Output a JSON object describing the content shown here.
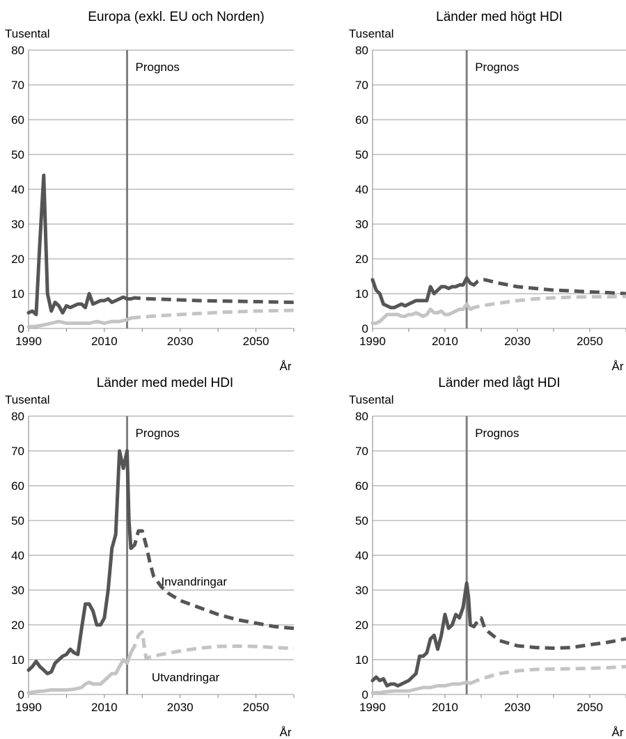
{
  "colors": {
    "invandringar": "#555555",
    "utvandringar": "#c4c4c4",
    "grid": "#9a9a9a",
    "forecast_line": "#808080",
    "axis": "#808080"
  },
  "chart_data": [
    {
      "type": "line",
      "title": "Europa (exkl. EU och Norden)",
      "ylabel": "Tusental",
      "xlabel": "År",
      "xlim": [
        1990,
        2060
      ],
      "ylim": [
        0,
        80
      ],
      "yticks": [
        0,
        10,
        20,
        30,
        40,
        50,
        60,
        70,
        80
      ],
      "xticks": [
        1990,
        2010,
        2030,
        2050
      ],
      "forecast_start": 2016,
      "forecast_label": "Prognos",
      "grid": "horizontal",
      "series": [
        {
          "key": "invandringar",
          "x": [
            1990,
            1991,
            1992,
            1993,
            1994,
            1995,
            1996,
            1997,
            1998,
            1999,
            2000,
            2001,
            2002,
            2003,
            2004,
            2005,
            2006,
            2007,
            2008,
            2009,
            2010,
            2011,
            2012,
            2013,
            2014,
            2015,
            2016,
            2017,
            2018,
            2019,
            2020,
            2025,
            2030,
            2035,
            2040,
            2045,
            2050,
            2055,
            2060
          ],
          "y": [
            4.5,
            5,
            4,
            25,
            44,
            10,
            5,
            7.5,
            6.5,
            4.5,
            6.5,
            6,
            6.5,
            7,
            7,
            6,
            10,
            7,
            7.5,
            8,
            8,
            8.5,
            7.5,
            8,
            8.5,
            9,
            8.5,
            8.5,
            8.8,
            8.7,
            8.6,
            8.4,
            8.2,
            8.0,
            7.9,
            7.8,
            7.7,
            7.6,
            7.5
          ]
        },
        {
          "key": "utvandringar",
          "x": [
            1990,
            1992,
            1994,
            1996,
            1998,
            2000,
            2002,
            2004,
            2006,
            2008,
            2010,
            2012,
            2014,
            2016,
            2017,
            2020,
            2025,
            2030,
            2035,
            2040,
            2045,
            2050,
            2055,
            2060
          ],
          "y": [
            0.5,
            0.6,
            1,
            1.5,
            2,
            1.5,
            1.5,
            1.5,
            1.5,
            2,
            1.5,
            2,
            2,
            2.5,
            3,
            3.3,
            3.7,
            4.0,
            4.3,
            4.6,
            4.8,
            5.0,
            5.1,
            5.2
          ]
        }
      ]
    },
    {
      "type": "line",
      "title": "Länder med högt HDI",
      "ylabel": "Tusental",
      "xlabel": "År",
      "xlim": [
        1990,
        2060
      ],
      "ylim": [
        0,
        80
      ],
      "yticks": [
        0,
        10,
        20,
        30,
        40,
        50,
        60,
        70,
        80
      ],
      "xticks": [
        1990,
        2010,
        2030,
        2050
      ],
      "forecast_start": 2016,
      "forecast_label": "Prognos",
      "grid": "horizontal",
      "series": [
        {
          "key": "invandringar",
          "x": [
            1990,
            1991,
            1992,
            1993,
            1994,
            1995,
            1996,
            1997,
            1998,
            1999,
            2000,
            2001,
            2002,
            2003,
            2004,
            2005,
            2006,
            2007,
            2008,
            2009,
            2010,
            2011,
            2012,
            2013,
            2014,
            2015,
            2016,
            2017,
            2018,
            2019,
            2020,
            2021,
            2025,
            2030,
            2035,
            2040,
            2045,
            2050,
            2055,
            2060
          ],
          "y": [
            14,
            11,
            10,
            7,
            6.5,
            6,
            6,
            6.5,
            7,
            6.5,
            7,
            7.5,
            8,
            8,
            8,
            8,
            12,
            10,
            11,
            12,
            12,
            11.5,
            12,
            12,
            12.5,
            12.5,
            14.5,
            13,
            12.5,
            13.5,
            14,
            14,
            13,
            12,
            11.5,
            11,
            10.8,
            10.5,
            10.3,
            10
          ]
        },
        {
          "key": "utvandringar",
          "x": [
            1990,
            1991,
            1992,
            1993,
            1994,
            1995,
            1996,
            1997,
            1998,
            1999,
            2000,
            2001,
            2002,
            2003,
            2004,
            2005,
            2006,
            2007,
            2008,
            2009,
            2010,
            2011,
            2012,
            2013,
            2014,
            2015,
            2016,
            2017,
            2018,
            2020,
            2025,
            2030,
            2035,
            2040,
            2045,
            2050,
            2055,
            2060
          ],
          "y": [
            1.5,
            1.5,
            2,
            3,
            4,
            4,
            4,
            4,
            3.5,
            3.5,
            4,
            4,
            4.5,
            4,
            3.5,
            4,
            5.5,
            4.5,
            4.5,
            5,
            4,
            4,
            4.5,
            5,
            5.5,
            5.5,
            7,
            5.5,
            6,
            6.5,
            7.3,
            8.0,
            8.5,
            8.8,
            9.0,
            9.1,
            9.1,
            9.2
          ]
        }
      ]
    },
    {
      "type": "line",
      "title": "Länder med medel HDI",
      "ylabel": "Tusental",
      "xlabel": "År",
      "xlim": [
        1990,
        2060
      ],
      "ylim": [
        0,
        80
      ],
      "yticks": [
        0,
        10,
        20,
        30,
        40,
        50,
        60,
        70,
        80
      ],
      "xticks": [
        1990,
        2010,
        2030,
        2050
      ],
      "forecast_start": 2016,
      "forecast_label": "Prognos",
      "grid": "horizontal",
      "annotations": [
        {
          "text": "Invandringar",
          "x": 2025,
          "y": 32.5
        },
        {
          "text": "Utvandringar",
          "x": 2022.5,
          "y": 5
        }
      ],
      "series": [
        {
          "key": "invandringar",
          "x": [
            1990,
            1991,
            1992,
            1993,
            1994,
            1995,
            1996,
            1997,
            1998,
            1999,
            2000,
            2001,
            2002,
            2003,
            2004,
            2005,
            2006,
            2007,
            2008,
            2009,
            2010,
            2011,
            2012,
            2013,
            2014,
            2015,
            2016,
            2016.5,
            2017,
            2018,
            2019,
            2020,
            2021,
            2022,
            2023,
            2025,
            2027,
            2030,
            2035,
            2040,
            2045,
            2050,
            2055,
            2060
          ],
          "y": [
            7,
            8,
            9.5,
            8,
            7,
            6,
            6.5,
            9,
            10,
            11,
            11.5,
            13,
            12,
            11.5,
            19,
            26,
            26,
            24,
            20,
            20,
            22,
            30,
            42,
            46,
            70,
            65,
            70,
            50,
            42,
            43,
            47,
            47,
            43,
            38,
            34,
            31,
            29,
            27,
            25,
            23,
            21.5,
            20.5,
            19.5,
            19
          ]
        },
        {
          "key": "utvandringar",
          "x": [
            1990,
            1992,
            1994,
            1996,
            1998,
            2000,
            2002,
            2004,
            2005,
            2006,
            2007,
            2008,
            2009,
            2010,
            2011,
            2012,
            2013,
            2014,
            2015,
            2016,
            2017,
            2018,
            2019,
            2020,
            2020.5,
            2021,
            2025,
            2030,
            2035,
            2040,
            2045,
            2050,
            2055,
            2060
          ],
          "y": [
            0.5,
            0.8,
            1,
            1.3,
            1.3,
            1.3,
            1.5,
            2,
            3,
            3.5,
            3,
            3,
            3,
            4,
            5,
            6,
            6,
            8,
            10,
            9,
            12,
            14,
            17,
            18,
            14,
            10.5,
            11.5,
            12.5,
            13.3,
            13.8,
            13.9,
            13.8,
            13.5,
            13.2
          ]
        }
      ]
    },
    {
      "type": "line",
      "title": "Länder med lågt HDI",
      "ylabel": "Tusental",
      "xlabel": "År",
      "xlim": [
        1990,
        2060
      ],
      "ylim": [
        0,
        80
      ],
      "yticks": [
        0,
        10,
        20,
        30,
        40,
        50,
        60,
        70,
        80
      ],
      "xticks": [
        1990,
        2010,
        2030,
        2050
      ],
      "forecast_start": 2016,
      "forecast_label": "Prognos",
      "grid": "horizontal",
      "series": [
        {
          "key": "invandringar",
          "x": [
            1990,
            1991,
            1992,
            1993,
            1994,
            1995,
            1996,
            1997,
            1998,
            1999,
            2000,
            2001,
            2002,
            2003,
            2004,
            2005,
            2006,
            2007,
            2008,
            2009,
            2010,
            2011,
            2012,
            2013,
            2014,
            2015,
            2016,
            2016.5,
            2017,
            2018,
            2019,
            2020,
            2021,
            2022,
            2025,
            2030,
            2035,
            2040,
            2045,
            2050,
            2055,
            2060
          ],
          "y": [
            4,
            5,
            4,
            4.5,
            2.5,
            3,
            3,
            2.5,
            3,
            3.5,
            4,
            5,
            6,
            11,
            11,
            12,
            16,
            17,
            13,
            17,
            23,
            19,
            20,
            23,
            22,
            25,
            32,
            28,
            20,
            19.5,
            21,
            22,
            19,
            18,
            15.5,
            14,
            13.5,
            13.3,
            13.5,
            14.3,
            15,
            16
          ]
        },
        {
          "key": "utvandringar",
          "x": [
            1990,
            1992,
            1994,
            1996,
            1998,
            2000,
            2002,
            2004,
            2006,
            2008,
            2010,
            2012,
            2014,
            2016,
            2017,
            2020,
            2025,
            2030,
            2035,
            2040,
            2045,
            2050,
            2055,
            2060
          ],
          "y": [
            0.5,
            0.5,
            0.8,
            1,
            1,
            1,
            1.5,
            2,
            2,
            2.5,
            2.5,
            3,
            3,
            3.5,
            3.2,
            4.5,
            6,
            6.8,
            7.2,
            7.3,
            7.4,
            7.5,
            7.7,
            8.0
          ]
        }
      ]
    }
  ]
}
